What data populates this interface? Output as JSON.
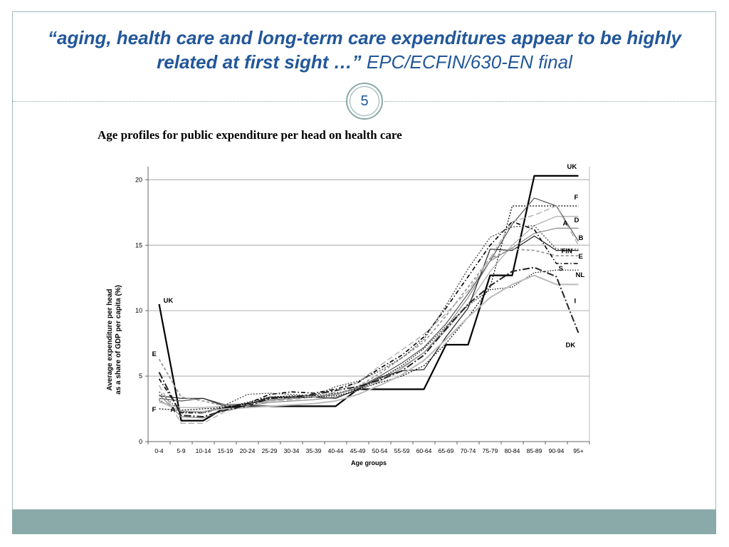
{
  "slide": {
    "title_quote": "“aging, health care and long-term care expenditures appear to be highly related at first sight …”",
    "title_source": " EPC/ECFIN/630-EN final",
    "page_number": "5"
  },
  "colors": {
    "accent": "#22579a",
    "frame": "#8aa9a9"
  },
  "chart_data": {
    "type": "line",
    "title": "Age profiles for public expenditure per head on health care",
    "xlabel": "Age groups",
    "ylabel": [
      "Average expenditure per head",
      "as a share of GDP per capita (%)"
    ],
    "ylim": [
      0,
      21
    ],
    "yticks": [
      0,
      5,
      10,
      15,
      20
    ],
    "grid": true,
    "categories": [
      "0-4",
      "5-9",
      "10-14",
      "15-19",
      "20-24",
      "25-29",
      "30-34",
      "35-39",
      "40-44",
      "45-49",
      "50-54",
      "55-59",
      "60-64",
      "65-69",
      "70-74",
      "75-79",
      "80-84",
      "85-89",
      "90-94",
      "95+"
    ],
    "series": [
      {
        "name": "UK",
        "color": "#000000",
        "width": 2.2,
        "dash": "",
        "values": [
          10.5,
          1.6,
          1.6,
          2.6,
          2.7,
          2.7,
          2.7,
          2.7,
          2.7,
          4.0,
          4.0,
          4.0,
          4.0,
          7.4,
          7.4,
          12.7,
          12.7,
          20.3,
          20.3,
          20.3
        ]
      },
      {
        "name": "F",
        "color": "#000000",
        "width": 1.2,
        "dash": "2,2",
        "values": [
          2.5,
          2.4,
          2.5,
          2.6,
          3.0,
          3.4,
          3.5,
          3.5,
          3.7,
          4.0,
          4.5,
          5.0,
          5.8,
          7.5,
          9.5,
          11.8,
          18.0,
          18.0,
          18.0,
          18.0
        ]
      },
      {
        "name": "D",
        "color": "#b0b0b0",
        "width": 1.3,
        "dash": "",
        "values": [
          3.0,
          2.6,
          2.6,
          2.7,
          2.9,
          3.1,
          3.3,
          3.4,
          3.6,
          4.1,
          4.8,
          5.7,
          6.8,
          8.5,
          10.5,
          13.0,
          15.0,
          16.5,
          17.2,
          17.2
        ]
      },
      {
        "name": "B",
        "color": "#555555",
        "width": 1.2,
        "dash": "",
        "values": [
          3.3,
          3.1,
          3.3,
          2.8,
          2.9,
          3.2,
          3.3,
          3.4,
          3.6,
          4.1,
          5.0,
          6.0,
          7.2,
          9.0,
          11.3,
          13.8,
          16.6,
          18.6,
          18.0,
          15.3
        ]
      },
      {
        "name": "A",
        "color": "#888888",
        "width": 1.2,
        "dash": "",
        "values": [
          3.6,
          1.9,
          1.8,
          2.4,
          2.7,
          3.0,
          3.1,
          3.2,
          3.4,
          3.9,
          4.6,
          5.6,
          6.8,
          8.7,
          11.0,
          13.8,
          14.8,
          15.9,
          16.3,
          16.3
        ]
      },
      {
        "name": "FIN",
        "color": "#222222",
        "width": 1.2,
        "dash": "",
        "values": [
          3.5,
          3.3,
          3.3,
          2.7,
          2.8,
          3.4,
          3.4,
          3.4,
          3.3,
          4.0,
          4.9,
          5.4,
          5.5,
          8.0,
          10.2,
          14.7,
          14.6,
          15.7,
          14.6,
          14.6
        ]
      },
      {
        "name": "E",
        "color": "#999999",
        "width": 1.8,
        "dash": "4,3",
        "values": [
          6.3,
          3.4,
          3.1,
          2.7,
          2.8,
          3.2,
          3.3,
          3.4,
          3.6,
          4.2,
          5.2,
          6.4,
          7.6,
          9.6,
          11.8,
          14.0,
          14.7,
          14.6,
          14.2,
          14.2
        ]
      },
      {
        "name": "S",
        "color": "#000000",
        "width": 1.6,
        "dash": "6,3,1.5,3",
        "values": [
          4.8,
          2.2,
          2.2,
          2.6,
          2.9,
          3.6,
          3.8,
          3.7,
          4.0,
          4.5,
          5.6,
          6.6,
          8.0,
          10.2,
          12.6,
          15.0,
          16.8,
          16.2,
          13.6,
          13.6
        ]
      },
      {
        "name": "NL",
        "color": "#000000",
        "width": 1.2,
        "dash": "1.5,2",
        "values": [
          3.2,
          2.2,
          2.3,
          2.6,
          2.9,
          3.3,
          3.4,
          3.4,
          3.5,
          3.9,
          4.8,
          5.8,
          7.1,
          8.8,
          10.4,
          11.6,
          11.8,
          12.9,
          13.1,
          13.1
        ]
      },
      {
        "name": "I",
        "color": "#bbbbbb",
        "width": 2.0,
        "dash": "",
        "values": [
          3.1,
          2.3,
          2.3,
          2.5,
          2.6,
          2.7,
          2.8,
          2.9,
          3.1,
          3.6,
          4.3,
          5.1,
          6.2,
          7.8,
          9.5,
          11.0,
          12.0,
          12.7,
          12.0,
          12.0
        ]
      },
      {
        "name": "DK",
        "color": "#222222",
        "width": 2.0,
        "dash": "10,3,2,3",
        "values": [
          5.3,
          2.0,
          1.9,
          2.4,
          2.7,
          3.3,
          3.4,
          3.6,
          3.9,
          4.2,
          4.7,
          5.4,
          6.6,
          8.6,
          10.5,
          11.9,
          13.0,
          13.3,
          12.6,
          8.3
        ]
      },
      {
        "name": "",
        "color": "#aaaaaa",
        "width": 1.3,
        "dash": "8,4",
        "values": [
          4.3,
          1.4,
          1.4,
          2.3,
          2.7,
          3.1,
          3.2,
          3.4,
          3.8,
          4.5,
          5.8,
          7.0,
          8.2,
          9.8,
          11.5,
          14.0,
          16.8,
          17.3,
          18.0,
          15.0
        ]
      },
      {
        "name": "",
        "color": "#555555",
        "width": 1.4,
        "dash": "2,2",
        "values": [
          3.8,
          2.3,
          2.2,
          2.8,
          3.6,
          3.7,
          3.6,
          3.5,
          4.2,
          4.6,
          5.4,
          6.4,
          7.8,
          10.4,
          13.2,
          15.6,
          16.4,
          16.5,
          14.7,
          14.7
        ]
      }
    ],
    "series_labels": [
      {
        "text": "UK",
        "at": "end",
        "dx": -16,
        "dy": -10
      },
      {
        "text": "F",
        "at": "end",
        "dx": -6,
        "dy": -9
      },
      {
        "text": "D",
        "at": "end",
        "dx": -6,
        "dy": 8
      },
      {
        "text": "A",
        "at": "end",
        "dx": -22,
        "dy": -4
      },
      {
        "text": "B",
        "at": "end",
        "dx": 0,
        "dy": -2
      },
      {
        "text": "FIN",
        "at": "end",
        "dx": -24,
        "dy": 4
      },
      {
        "text": "E",
        "at": "end",
        "dx": 0,
        "dy": 4
      },
      {
        "text": "S",
        "at": "end",
        "dx": -28,
        "dy": 10
      },
      {
        "text": "NL",
        "at": "end",
        "dx": -4,
        "dy": 10
      },
      {
        "text": "I",
        "at": "end",
        "dx": -6,
        "dy": 26
      },
      {
        "text": "DK",
        "at": "end",
        "dx": -18,
        "dy": 20
      },
      {
        "text": "UK",
        "at": "start",
        "dx": 6,
        "dy": -2
      },
      {
        "text": "E",
        "at": "start",
        "dx": -10,
        "dy": -4
      },
      {
        "text": "F",
        "at": "start",
        "dx": -10,
        "dy": 4
      },
      {
        "text": "A",
        "at": "start",
        "dx": 16,
        "dy": 24
      }
    ]
  }
}
